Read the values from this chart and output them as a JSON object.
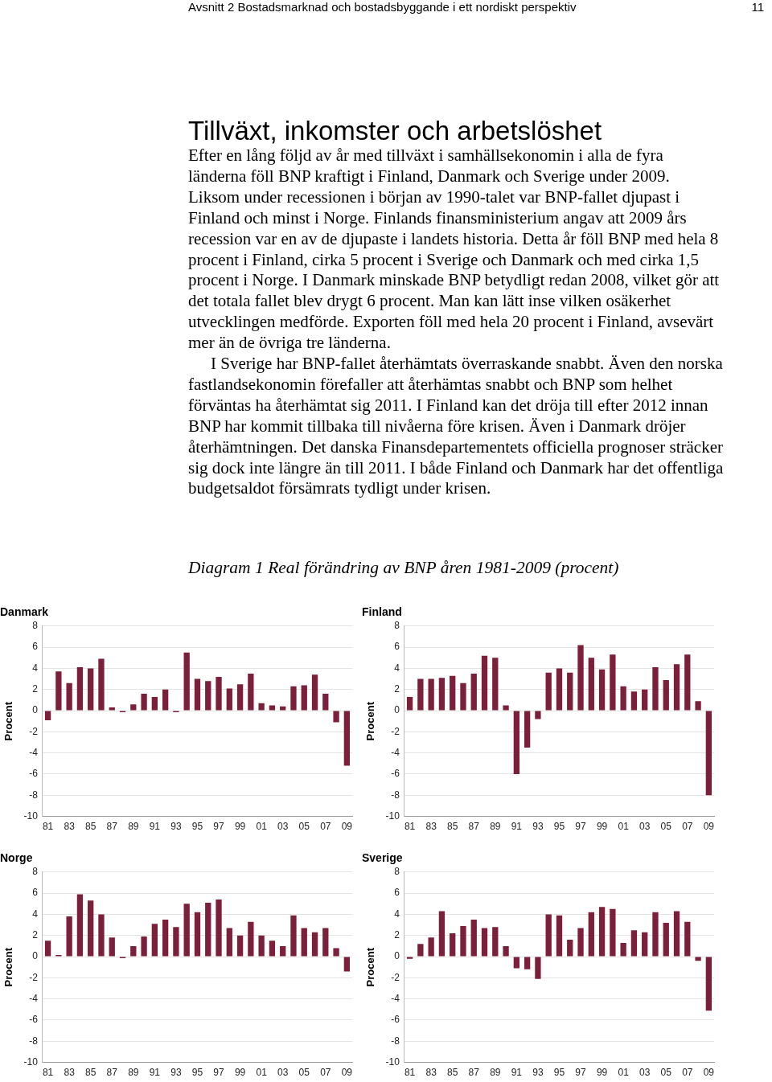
{
  "chart_data": [
    {
      "type": "bar",
      "title": "Danmark",
      "ylabel": "Procent",
      "annotations": [
        "Avsnitt 2  Bostadsmarknad och bostadsbyggande i ett nordiskt perspektiv",
        "11",
        "Tillväxt, inkomster och arbetslöshet",
        "Efter en lång följd av år med tillväxt i samhällsekonomin i alla de fyra länderna föll BNP kraftigt i Finland, Danmark och Sverige under 2009. Liksom under recessionen i början av 1990-talet var BNP-fallet djupast i Finland och minst i Norge. Finlands finansministerium angav att 2009 års recession var en av de djupaste i landets historia. Detta år föll BNP med hela 8 procent i Finland, cirka 5 procent i Sverige och Danmark och med cirka 1,5 procent i Norge. I Danmark minskade BNP betydligt redan 2008, vilket gör att det totala fallet blev drygt 6 procent. Man kan lätt inse vilken osäkerhet utvecklingen medförde. Exporten föll med hela 20 procent i Finland, avsevärt mer än de övriga tre länderna.",
        "I Sverige har BNP-fallet återhämtats överraskande snabbt. Även den norska fastlandsekonomin förefaller att återhämtas snabbt och BNP som helhet förväntas ha återhämtat sig 2011. I Finland kan det dröja till efter 2012 innan BNP har kommit tillbaka till nivåerna före krisen. Även i Danmark dröjer återhämtningen. Det danska Finansdepartementets officiella prognoser sträcker sig dock inte längre än till 2011. I både Finland och Danmark har det offentliga budgetsaldot försämrats tydligt under krisen.",
        "Diagram 1 Real förändring av BNP åren 1981-2009 (procent)"
      ],
      "categories": [
        "81",
        null,
        "83",
        null,
        "85",
        null,
        "87",
        null,
        "89",
        null,
        "91",
        null,
        "93",
        null,
        "95",
        null,
        "97",
        null,
        "99",
        null,
        "01",
        null,
        "03",
        null,
        "05",
        null,
        "07",
        null,
        "09"
      ],
      "values": [
        -0.9,
        3.7,
        2.6,
        4.1,
        4.0,
        4.9,
        0.3,
        -0.1,
        0.6,
        1.6,
        1.3,
        2.0,
        -0.1,
        5.5,
        3.0,
        2.8,
        3.2,
        2.1,
        2.5,
        3.5,
        0.7,
        0.5,
        0.4,
        2.3,
        2.4,
        3.4,
        1.6,
        -1.1,
        -5.2
      ],
      "color": "#7b1f3a",
      "ylim": [
        -10,
        8
      ],
      "yticks": [
        -10,
        -8,
        -6,
        -4,
        -2,
        0,
        2,
        4,
        6,
        8
      ],
      "grid": "y",
      "legend": false
    },
    {
      "type": "bar",
      "title": "Finland",
      "ylabel": "Procent",
      "categories": [
        "81",
        null,
        "83",
        null,
        "85",
        null,
        "87",
        null,
        "89",
        null,
        "91",
        null,
        "93",
        null,
        "95",
        null,
        "97",
        null,
        "99",
        null,
        "01",
        null,
        "03",
        null,
        "05",
        null,
        "07",
        null,
        "09"
      ],
      "values": [
        1.3,
        3.0,
        3.0,
        3.1,
        3.3,
        2.6,
        3.5,
        5.2,
        5.0,
        0.5,
        -6.0,
        -3.5,
        -0.8,
        3.6,
        4.0,
        3.6,
        6.2,
        5.0,
        3.9,
        5.3,
        2.3,
        1.8,
        2.0,
        4.1,
        2.9,
        4.4,
        5.3,
        0.9,
        -8.0
      ],
      "color": "#7b1f3a",
      "ylim": [
        -10,
        8
      ],
      "yticks": [
        -10,
        -8,
        -6,
        -4,
        -2,
        0,
        2,
        4,
        6,
        8
      ],
      "grid": "y",
      "legend": false
    },
    {
      "type": "bar",
      "title": "Norge",
      "ylabel": "Procent",
      "categories": [
        "81",
        null,
        "83",
        null,
        "85",
        null,
        "87",
        null,
        "89",
        null,
        "91",
        null,
        "93",
        null,
        "95",
        null,
        "97",
        null,
        "99",
        null,
        "01",
        null,
        "03",
        null,
        "05",
        null,
        "07",
        null,
        "09"
      ],
      "values": [
        1.5,
        0.1,
        3.8,
        5.9,
        5.3,
        4.0,
        1.8,
        -0.1,
        1.0,
        1.9,
        3.1,
        3.5,
        2.8,
        5.0,
        4.2,
        5.1,
        5.4,
        2.7,
        2.0,
        3.3,
        2.0,
        1.5,
        1.0,
        3.9,
        2.7,
        2.3,
        2.7,
        0.8,
        -1.4
      ],
      "color": "#7b1f3a",
      "ylim": [
        -10,
        8
      ],
      "yticks": [
        -10,
        -8,
        -6,
        -4,
        -2,
        0,
        2,
        4,
        6,
        8
      ],
      "grid": "y",
      "legend": false
    },
    {
      "type": "bar",
      "title": "Sverige",
      "ylabel": "Procent",
      "categories": [
        "81",
        null,
        "83",
        null,
        "85",
        null,
        "87",
        null,
        "89",
        null,
        "91",
        null,
        "93",
        null,
        "95",
        null,
        "97",
        null,
        "99",
        null,
        "01",
        null,
        "03",
        null,
        "05",
        null,
        "07",
        null,
        "09"
      ],
      "values": [
        -0.2,
        1.2,
        1.8,
        4.3,
        2.2,
        2.9,
        3.5,
        2.7,
        2.8,
        1.0,
        -1.1,
        -1.2,
        -2.1,
        4.0,
        3.9,
        1.6,
        2.7,
        4.2,
        4.7,
        4.5,
        1.3,
        2.5,
        2.3,
        4.2,
        3.2,
        4.3,
        3.3,
        -0.4,
        -5.1
      ],
      "color": "#7b1f3a",
      "ylim": [
        -10,
        8
      ],
      "yticks": [
        -10,
        -8,
        -6,
        -4,
        -2,
        0,
        2,
        4,
        6,
        8
      ],
      "grid": "y",
      "legend": false
    }
  ]
}
